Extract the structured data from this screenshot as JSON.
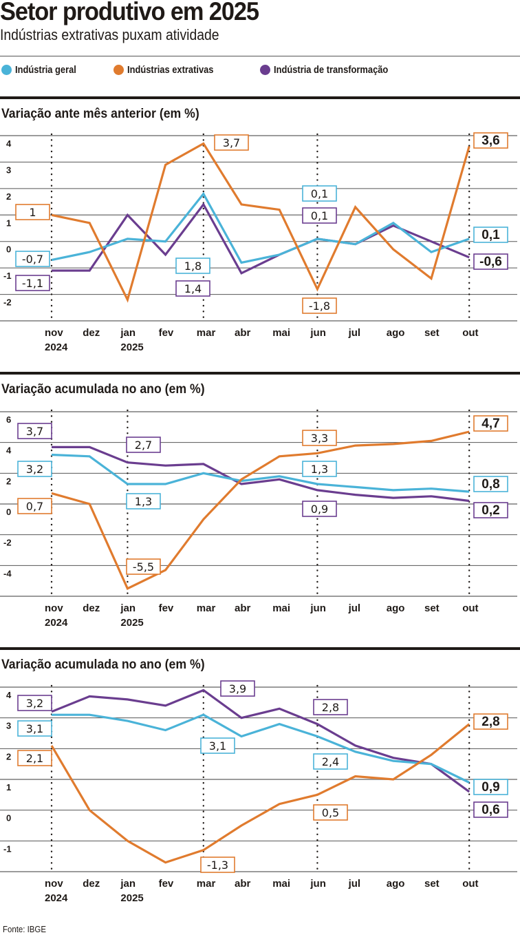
{
  "header": {
    "title": "Setor produtivo em 2025",
    "subtitle": "Indústrias extrativas puxam atividade"
  },
  "legend": [
    {
      "key": "geral",
      "label": "Indústria geral",
      "color": "#4ab3d8"
    },
    {
      "key": "extrativas",
      "label": "Indústrias extrativas",
      "color": "#e07b2e"
    },
    {
      "key": "transformacao",
      "label": "Indústria de transformação",
      "color": "#6a3d8f"
    }
  ],
  "source": "Fonte: IBGE",
  "chart_data": [
    {
      "type": "line",
      "title": "Variação ante mês anterior (em %)",
      "xlabel": "",
      "ylabel": "%",
      "categories": [
        "nov",
        "dez",
        "jan",
        "fev",
        "mar",
        "abr",
        "mai",
        "jun",
        "jul",
        "ago",
        "set",
        "out"
      ],
      "category_years": [
        "2024",
        "",
        "2025",
        "",
        "",
        "",
        "",
        "",
        "",
        "",
        "",
        ""
      ],
      "highlight_categories": [
        "nov",
        "mar",
        "jun",
        "out"
      ],
      "ylim": [
        -3,
        4
      ],
      "yticks": [
        4,
        3,
        2,
        1,
        0,
        -1,
        -2
      ],
      "grid": true,
      "series": [
        {
          "name": "Indústria geral",
          "key": "geral",
          "values": [
            -0.7,
            -0.4,
            0.1,
            0.0,
            1.8,
            -0.8,
            -0.5,
            0.1,
            -0.1,
            0.7,
            -0.4,
            0.1
          ]
        },
        {
          "name": "Indústrias extrativas",
          "key": "extrativas",
          "values": [
            1.0,
            0.7,
            -2.2,
            2.9,
            3.7,
            1.4,
            1.2,
            -1.8,
            1.3,
            -0.3,
            -1.4,
            3.6
          ]
        },
        {
          "name": "Indústria de transformação",
          "key": "transformacao",
          "values": [
            -1.1,
            -1.1,
            1.0,
            -0.5,
            1.4,
            -1.2,
            -0.5,
            0.1,
            -0.1,
            0.6,
            0.0,
            -0.6
          ]
        }
      ],
      "annotations": [
        {
          "series": "extrativas",
          "category": "nov",
          "text": "1",
          "bold": false
        },
        {
          "series": "geral",
          "category": "nov",
          "text": "-0,7",
          "bold": false
        },
        {
          "series": "transformacao",
          "category": "nov",
          "text": "-1,1",
          "bold": false
        },
        {
          "series": "extrativas",
          "category": "mar",
          "text": "3,7",
          "bold": false
        },
        {
          "series": "geral",
          "category": "mar",
          "text": "1,8",
          "bold": false
        },
        {
          "series": "transformacao",
          "category": "mar",
          "text": "1,4",
          "bold": false
        },
        {
          "series": "geral",
          "category": "jun",
          "text": "0,1",
          "bold": false
        },
        {
          "series": "transformacao",
          "category": "jun",
          "text": "0,1",
          "bold": false
        },
        {
          "series": "extrativas",
          "category": "jun",
          "text": "-1,8",
          "bold": false
        },
        {
          "series": "extrativas",
          "category": "out",
          "text": "3,6",
          "bold": true
        },
        {
          "series": "geral",
          "category": "out",
          "text": "0,1",
          "bold": true
        },
        {
          "series": "transformacao",
          "category": "out",
          "text": "-0,6",
          "bold": true
        }
      ]
    },
    {
      "type": "line",
      "title": "Variação acumulada no ano (em %)",
      "xlabel": "",
      "ylabel": "%",
      "categories": [
        "nov",
        "dez",
        "jan",
        "fev",
        "mar",
        "abr",
        "mai",
        "jun",
        "jul",
        "ago",
        "set",
        "out"
      ],
      "category_years": [
        "2024",
        "",
        "2025",
        "",
        "",
        "",
        "",
        "",
        "",
        "",
        "",
        ""
      ],
      "highlight_categories": [
        "nov",
        "jan",
        "jun",
        "out"
      ],
      "ylim": [
        -6,
        6
      ],
      "yticks": [
        6,
        4,
        2,
        0,
        -2,
        -4
      ],
      "grid": true,
      "series": [
        {
          "name": "Indústria geral",
          "key": "geral",
          "values": [
            3.2,
            3.1,
            1.3,
            1.3,
            2.0,
            1.5,
            1.8,
            1.3,
            1.1,
            0.9,
            1.0,
            0.8
          ]
        },
        {
          "name": "Indústrias extrativas",
          "key": "extrativas",
          "values": [
            0.7,
            0.0,
            -5.5,
            -4.3,
            -1.0,
            1.6,
            3.1,
            3.3,
            3.8,
            3.9,
            4.1,
            4.7
          ]
        },
        {
          "name": "Indústria de transformação",
          "key": "transformacao",
          "values": [
            3.7,
            3.7,
            2.7,
            2.5,
            2.6,
            1.3,
            1.6,
            0.9,
            0.6,
            0.4,
            0.5,
            0.2
          ]
        }
      ],
      "annotations": [
        {
          "series": "transformacao",
          "category": "nov",
          "text": "3,7",
          "bold": false
        },
        {
          "series": "geral",
          "category": "nov",
          "text": "3,2",
          "bold": false
        },
        {
          "series": "extrativas",
          "category": "nov",
          "text": "0,7",
          "bold": false
        },
        {
          "series": "transformacao",
          "category": "jan",
          "text": "2,7",
          "bold": false
        },
        {
          "series": "geral",
          "category": "jan",
          "text": "1,3",
          "bold": false
        },
        {
          "series": "extrativas",
          "category": "jan",
          "text": "-5,5",
          "bold": false
        },
        {
          "series": "extrativas",
          "category": "jun",
          "text": "3,3",
          "bold": false
        },
        {
          "series": "geral",
          "category": "jun",
          "text": "1,3",
          "bold": false
        },
        {
          "series": "transformacao",
          "category": "jun",
          "text": "0,9",
          "bold": false
        },
        {
          "series": "extrativas",
          "category": "out",
          "text": "4,7",
          "bold": true
        },
        {
          "series": "geral",
          "category": "out",
          "text": "0,8",
          "bold": true
        },
        {
          "series": "transformacao",
          "category": "out",
          "text": "0,2",
          "bold": true
        }
      ]
    },
    {
      "type": "line",
      "title": "Variação acumulada no ano (em %)",
      "xlabel": "",
      "ylabel": "%",
      "categories": [
        "nov",
        "dez",
        "jan",
        "fev",
        "mar",
        "abr",
        "mai",
        "jun",
        "jul",
        "ago",
        "set",
        "out"
      ],
      "category_years": [
        "2024",
        "",
        "2025",
        "",
        "",
        "",
        "",
        "",
        "",
        "",
        "",
        ""
      ],
      "highlight_categories": [
        "nov",
        "mar",
        "jun",
        "out"
      ],
      "ylim": [
        -2,
        4
      ],
      "yticks": [
        4,
        3,
        2,
        1,
        0,
        -1
      ],
      "grid": true,
      "series": [
        {
          "name": "Indústria geral",
          "key": "geral",
          "values": [
            3.1,
            3.1,
            2.9,
            2.6,
            3.1,
            2.4,
            2.8,
            2.4,
            1.9,
            1.6,
            1.5,
            0.9
          ]
        },
        {
          "name": "Indústrias extrativas",
          "key": "extrativas",
          "values": [
            2.1,
            0.0,
            -1.0,
            -1.7,
            -1.3,
            -0.5,
            0.2,
            0.5,
            1.1,
            1.0,
            1.8,
            2.8
          ]
        },
        {
          "name": "Indústria de transformação",
          "key": "transformacao",
          "values": [
            3.2,
            3.7,
            3.6,
            3.4,
            3.9,
            3.0,
            3.3,
            2.8,
            2.1,
            1.7,
            1.5,
            0.6
          ]
        }
      ],
      "annotations": [
        {
          "series": "transformacao",
          "category": "nov",
          "text": "3,2",
          "bold": false
        },
        {
          "series": "geral",
          "category": "nov",
          "text": "3,1",
          "bold": false
        },
        {
          "series": "extrativas",
          "category": "nov",
          "text": "2,1",
          "bold": false
        },
        {
          "series": "transformacao",
          "category": "mar",
          "text": "3,9",
          "bold": false
        },
        {
          "series": "geral",
          "category": "mar",
          "text": "3,1",
          "bold": false
        },
        {
          "series": "extrativas",
          "category": "mar",
          "text": "-1,3",
          "bold": false
        },
        {
          "series": "transformacao",
          "category": "jun",
          "text": "2,8",
          "bold": false
        },
        {
          "series": "geral",
          "category": "jun",
          "text": "2,4",
          "bold": false
        },
        {
          "series": "extrativas",
          "category": "jun",
          "text": "0,5",
          "bold": false
        },
        {
          "series": "extrativas",
          "category": "out",
          "text": "2,8",
          "bold": true
        },
        {
          "series": "geral",
          "category": "out",
          "text": "0,9",
          "bold": true
        },
        {
          "series": "transformacao",
          "category": "out",
          "text": "0,6",
          "bold": true
        }
      ]
    }
  ]
}
